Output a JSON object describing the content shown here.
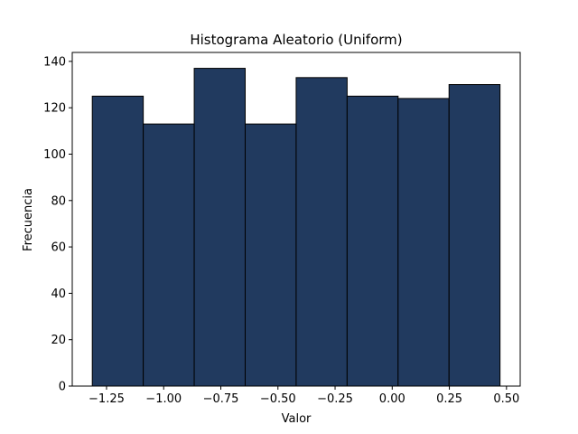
{
  "chart_data": {
    "type": "bar",
    "title": "Histograma Aleatorio (Uniform)",
    "xlabel": "Valor",
    "ylabel": "Frecuencia",
    "bin_edges": [
      -1.3123,
      -1.0893,
      -0.8663,
      -0.6433,
      -0.4203,
      -0.1973,
      0.0257,
      0.2487,
      0.4717
    ],
    "values": [
      125,
      113,
      137,
      113,
      133,
      125,
      124,
      130
    ],
    "xlim": [
      -1.4,
      0.56
    ],
    "ylim": [
      0,
      143.85
    ],
    "xticks": [
      -1.25,
      -1.0,
      -0.75,
      -0.5,
      -0.25,
      0.0,
      0.25,
      0.5
    ],
    "xtick_labels": [
      "−1.25",
      "−1.00",
      "−0.75",
      "−0.50",
      "−0.25",
      "0.00",
      "0.25",
      "0.50"
    ],
    "yticks": [
      0,
      20,
      40,
      60,
      80,
      100,
      120,
      140
    ],
    "ytick_labels": [
      "0",
      "20",
      "40",
      "60",
      "80",
      "100",
      "120",
      "140"
    ],
    "bar_color": "#213a5f",
    "edge_color": "#000000",
    "grid": false,
    "legend": false
  }
}
